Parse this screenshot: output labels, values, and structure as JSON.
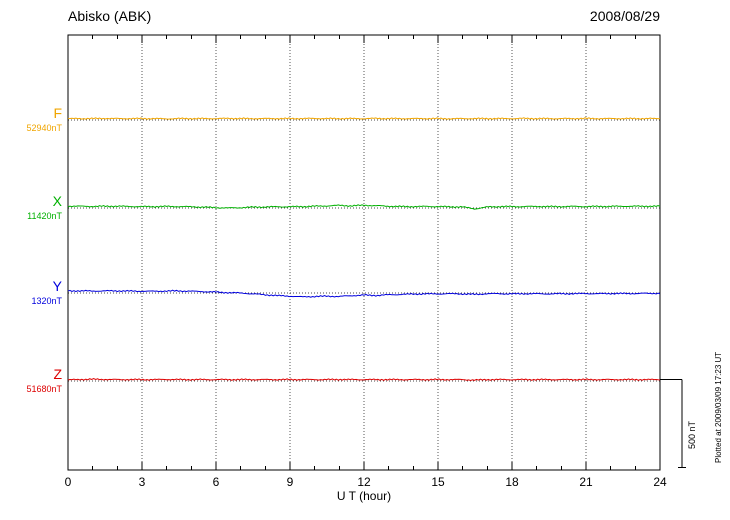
{
  "header": {
    "title": "Abisko (ABK)",
    "date": "2008/08/29"
  },
  "axis": {
    "xlabel": "U T (hour)",
    "ticks": [
      0,
      3,
      6,
      9,
      12,
      15,
      18,
      21,
      24
    ],
    "minor_step": 1,
    "range": [
      0,
      24
    ]
  },
  "scale_bar": {
    "label": "500 nT",
    "nT": 500
  },
  "footer": {
    "note": "Plotted at 2009/03/09 17:23 UT"
  },
  "chart_data": {
    "type": "line",
    "title": "Abisko (ABK)",
    "xlabel": "U T (hour)",
    "x_range": [
      0,
      24
    ],
    "x_step_hours": 0.5,
    "grid": "vertical-dotted-every-3h",
    "legend_position": "left-margin",
    "series": [
      {
        "name": "F",
        "baseline_label": "52940nT",
        "baseline_nT": 52940,
        "color": "#f0a500",
        "offsets_nT": [
          8,
          8,
          8,
          9,
          8,
          8,
          8,
          8,
          7,
          8,
          8,
          8,
          8,
          9,
          8,
          8,
          8,
          8,
          8,
          8,
          9,
          8,
          8,
          8,
          8,
          9,
          8,
          8,
          8,
          8,
          8,
          7,
          8,
          8,
          8,
          8,
          8,
          9,
          8,
          8,
          8,
          8,
          9,
          8,
          8,
          8,
          8,
          8,
          8
        ]
      },
      {
        "name": "X",
        "baseline_label": "11420nT",
        "baseline_nT": 11420,
        "color": "#00b000",
        "offsets_nT": [
          10,
          10,
          9,
          10,
          10,
          9,
          8,
          8,
          9,
          8,
          7,
          5,
          2,
          0,
          2,
          5,
          6,
          7,
          7,
          8,
          10,
          12,
          15,
          12,
          16,
          13,
          10,
          8,
          8,
          9,
          8,
          7,
          6,
          -5,
          6,
          8,
          8,
          8,
          9,
          8,
          8,
          9,
          8,
          9,
          9,
          10,
          10,
          10,
          10
        ]
      },
      {
        "name": "Y",
        "baseline_label": "1320nT",
        "baseline_nT": 1320,
        "color": "#0000dd",
        "offsets_nT": [
          12,
          12,
          11,
          12,
          12,
          11,
          10,
          10,
          11,
          12,
          10,
          8,
          5,
          2,
          0,
          -5,
          -10,
          -15,
          -18,
          -22,
          -20,
          -18,
          -20,
          -15,
          -12,
          -14,
          -10,
          -8,
          -6,
          -5,
          -5,
          -4,
          -5,
          -8,
          -4,
          -4,
          -5,
          -4,
          -4,
          -5,
          -4,
          -4,
          -3,
          -4,
          -3,
          -3,
          -3,
          -2,
          -2
        ]
      },
      {
        "name": "Z",
        "baseline_label": "51680nT",
        "baseline_nT": 51680,
        "color": "#dd0000",
        "offsets_nT": [
          6,
          9,
          10,
          9,
          8,
          8,
          8,
          8,
          9,
          8,
          8,
          8,
          8,
          8,
          8,
          8,
          8,
          8,
          8,
          8,
          8,
          8,
          9,
          8,
          8,
          8,
          8,
          8,
          8,
          8,
          8,
          8,
          8,
          5,
          8,
          8,
          8,
          8,
          8,
          8,
          8,
          8,
          8,
          8,
          8,
          8,
          8,
          8,
          8
        ]
      }
    ]
  }
}
